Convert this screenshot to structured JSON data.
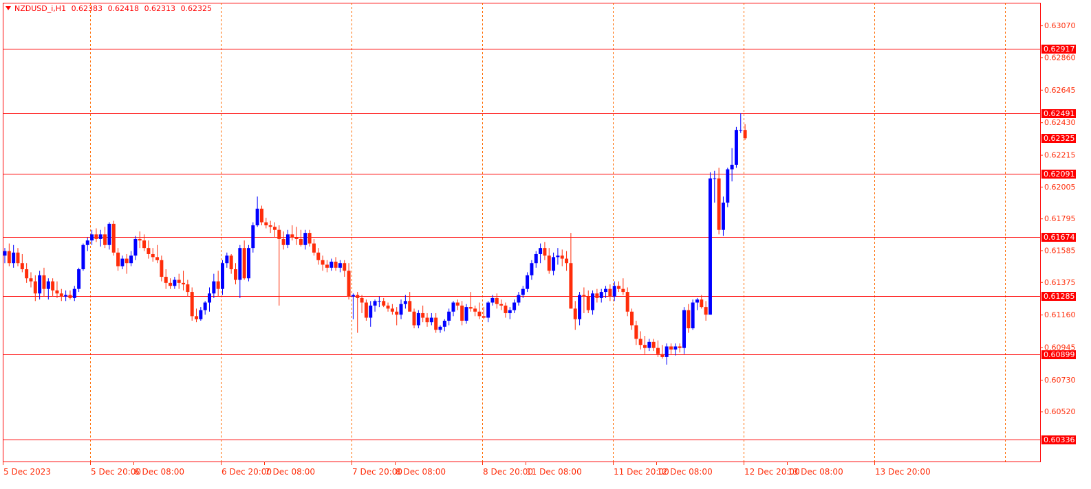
{
  "header": {
    "symbol": "NZDUSD_i,H1",
    "open": "0.62383",
    "high": "0.62418",
    "low": "0.62313",
    "close": "0.62325"
  },
  "colors": {
    "bull": "#0000ff",
    "bear": "#ff2d0a",
    "grid": "#ff6a00",
    "hline": "#ff0000",
    "axis_text": "#ff2d0a",
    "label_bg": "#ff0000"
  },
  "chart_data": {
    "type": "candlestick",
    "symbol": "NZDUSD_i",
    "timeframe": "H1",
    "ylim": [
      0.6019,
      0.6322
    ],
    "y_ticks": [
      "0.63070",
      "0.62860",
      "0.62645",
      "0.62430",
      "0.62215",
      "0.62005",
      "0.61795",
      "0.61585",
      "0.61375",
      "0.61160",
      "0.60945",
      "0.60730",
      "0.60520"
    ],
    "x_ticks": [
      "5 Dec 2023",
      "5 Dec 20:00",
      "6 Dec 08:00",
      "6 Dec 20:00",
      "7 Dec 08:00",
      "7 Dec 20:00",
      "8 Dec 08:00",
      "8 Dec 20:00",
      "11 Dec 08:00",
      "11 Dec 20:00",
      "12 Dec 08:00",
      "12 Dec 20:00",
      "13 Dec 08:00",
      "13 Dec 20:00"
    ],
    "horizontal_lines": [
      "0.62917",
      "0.62491",
      "0.62091",
      "0.61674",
      "0.61285",
      "0.60899",
      "0.60336"
    ],
    "current_price": "0.62325",
    "candles": [
      [
        0.6155,
        0.616,
        0.615,
        0.6158
      ],
      [
        0.6158,
        0.6163,
        0.6148,
        0.615
      ],
      [
        0.615,
        0.6162,
        0.6147,
        0.6157
      ],
      [
        0.6157,
        0.616,
        0.6148,
        0.615
      ],
      [
        0.615,
        0.6156,
        0.6144,
        0.6146
      ],
      [
        0.6146,
        0.615,
        0.6137,
        0.614
      ],
      [
        0.614,
        0.6144,
        0.6134,
        0.6138
      ],
      [
        0.6138,
        0.6142,
        0.6125,
        0.613
      ],
      [
        0.613,
        0.6145,
        0.6126,
        0.6142
      ],
      [
        0.6142,
        0.6147,
        0.6128,
        0.6133
      ],
      [
        0.6133,
        0.614,
        0.6126,
        0.6138
      ],
      [
        0.6138,
        0.614,
        0.6128,
        0.6132
      ],
      [
        0.6132,
        0.6138,
        0.6127,
        0.613
      ],
      [
        0.613,
        0.6133,
        0.6125,
        0.6128
      ],
      [
        0.6128,
        0.6132,
        0.6125,
        0.6129
      ],
      [
        0.6129,
        0.6132,
        0.6126,
        0.6127
      ],
      [
        0.6127,
        0.6135,
        0.6125,
        0.6133
      ],
      [
        0.6133,
        0.6147,
        0.6131,
        0.6146
      ],
      [
        0.6146,
        0.6163,
        0.6145,
        0.6162
      ],
      [
        0.6162,
        0.6167,
        0.6158,
        0.6165
      ],
      [
        0.6165,
        0.6172,
        0.6162,
        0.6169
      ],
      [
        0.6169,
        0.6173,
        0.6164,
        0.6166
      ],
      [
        0.6166,
        0.6172,
        0.6161,
        0.6169
      ],
      [
        0.6169,
        0.6174,
        0.616,
        0.6162
      ],
      [
        0.6162,
        0.6177,
        0.6159,
        0.6176
      ],
      [
        0.6176,
        0.6178,
        0.6155,
        0.6157
      ],
      [
        0.6157,
        0.616,
        0.6145,
        0.6148
      ],
      [
        0.6148,
        0.6155,
        0.6146,
        0.6153
      ],
      [
        0.6153,
        0.6156,
        0.6143,
        0.615
      ],
      [
        0.615,
        0.6158,
        0.6148,
        0.6155
      ],
      [
        0.6155,
        0.6168,
        0.6152,
        0.6166
      ],
      [
        0.6166,
        0.6171,
        0.616,
        0.6165
      ],
      [
        0.6165,
        0.6169,
        0.6158,
        0.616
      ],
      [
        0.616,
        0.6165,
        0.6153,
        0.6156
      ],
      [
        0.6156,
        0.616,
        0.6151,
        0.6154
      ],
      [
        0.6154,
        0.6162,
        0.615,
        0.6152
      ],
      [
        0.6152,
        0.6155,
        0.6138,
        0.6141
      ],
      [
        0.6141,
        0.6146,
        0.6133,
        0.6137
      ],
      [
        0.6137,
        0.614,
        0.6133,
        0.6135
      ],
      [
        0.6135,
        0.6141,
        0.6133,
        0.6139
      ],
      [
        0.6139,
        0.6143,
        0.6133,
        0.6137
      ],
      [
        0.6137,
        0.6145,
        0.6132,
        0.6136
      ],
      [
        0.6136,
        0.6139,
        0.6128,
        0.6131
      ],
      [
        0.6131,
        0.6134,
        0.6112,
        0.6115
      ],
      [
        0.6115,
        0.612,
        0.6111,
        0.6113
      ],
      [
        0.6113,
        0.6121,
        0.6112,
        0.6119
      ],
      [
        0.6119,
        0.6125,
        0.6116,
        0.6124
      ],
      [
        0.6124,
        0.6134,
        0.6118,
        0.613
      ],
      [
        0.613,
        0.6143,
        0.6127,
        0.6138
      ],
      [
        0.6138,
        0.6145,
        0.6128,
        0.6133
      ],
      [
        0.6133,
        0.6152,
        0.6129,
        0.615
      ],
      [
        0.615,
        0.6157,
        0.6147,
        0.6155
      ],
      [
        0.6155,
        0.6156,
        0.6143,
        0.6146
      ],
      [
        0.6146,
        0.615,
        0.6136,
        0.6139
      ],
      [
        0.6139,
        0.6162,
        0.6127,
        0.616
      ],
      [
        0.616,
        0.6165,
        0.6139,
        0.614
      ],
      [
        0.614,
        0.6162,
        0.6138,
        0.616
      ],
      [
        0.616,
        0.6177,
        0.6157,
        0.6175
      ],
      [
        0.6175,
        0.6194,
        0.6174,
        0.6186
      ],
      [
        0.6186,
        0.6188,
        0.6175,
        0.6177
      ],
      [
        0.6177,
        0.618,
        0.6173,
        0.6175
      ],
      [
        0.6175,
        0.6178,
        0.617,
        0.6174
      ],
      [
        0.6174,
        0.6177,
        0.6167,
        0.6172
      ],
      [
        0.6172,
        0.6175,
        0.6122,
        0.6166
      ],
      [
        0.6166,
        0.6171,
        0.6159,
        0.6162
      ],
      [
        0.6162,
        0.6172,
        0.616,
        0.6169
      ],
      [
        0.6169,
        0.6175,
        0.6165,
        0.6167
      ],
      [
        0.6167,
        0.6174,
        0.6162,
        0.6166
      ],
      [
        0.6166,
        0.6172,
        0.6161,
        0.6162
      ],
      [
        0.6162,
        0.6172,
        0.6159,
        0.617
      ],
      [
        0.617,
        0.6172,
        0.6161,
        0.6163
      ],
      [
        0.6163,
        0.6166,
        0.6155,
        0.6157
      ],
      [
        0.6157,
        0.616,
        0.6149,
        0.6152
      ],
      [
        0.6152,
        0.6155,
        0.6145,
        0.6149
      ],
      [
        0.6149,
        0.6152,
        0.6144,
        0.6147
      ],
      [
        0.6147,
        0.6153,
        0.6145,
        0.6151
      ],
      [
        0.6151,
        0.6154,
        0.6145,
        0.6147
      ],
      [
        0.6147,
        0.6152,
        0.6144,
        0.615
      ],
      [
        0.615,
        0.6152,
        0.6141,
        0.6145
      ],
      [
        0.6145,
        0.615,
        0.6126,
        0.6128
      ],
      [
        0.6128,
        0.613,
        0.6113,
        0.6129
      ],
      [
        0.6129,
        0.6131,
        0.6104,
        0.6127
      ],
      [
        0.6127,
        0.6129,
        0.6117,
        0.6124
      ],
      [
        0.6124,
        0.6126,
        0.6112,
        0.6114
      ],
      [
        0.6114,
        0.6125,
        0.6108,
        0.6122
      ],
      [
        0.6122,
        0.6126,
        0.6118,
        0.6125
      ],
      [
        0.6125,
        0.6128,
        0.6121,
        0.6125
      ],
      [
        0.6125,
        0.6127,
        0.6121,
        0.6122
      ],
      [
        0.6122,
        0.6124,
        0.6118,
        0.612
      ],
      [
        0.612,
        0.6123,
        0.6116,
        0.6118
      ],
      [
        0.6118,
        0.6121,
        0.6109,
        0.6116
      ],
      [
        0.6116,
        0.6126,
        0.6113,
        0.6123
      ],
      [
        0.6123,
        0.6129,
        0.612,
        0.6125
      ],
      [
        0.6125,
        0.6131,
        0.612,
        0.6118
      ],
      [
        0.6118,
        0.612,
        0.6107,
        0.6109
      ],
      [
        0.6109,
        0.6119,
        0.6107,
        0.6117
      ],
      [
        0.6117,
        0.6122,
        0.6111,
        0.6114
      ],
      [
        0.6114,
        0.6117,
        0.6108,
        0.6111
      ],
      [
        0.6111,
        0.6117,
        0.6109,
        0.6114
      ],
      [
        0.6114,
        0.6117,
        0.6104,
        0.6106
      ],
      [
        0.6106,
        0.6109,
        0.6104,
        0.6108
      ],
      [
        0.6108,
        0.6113,
        0.6105,
        0.6112
      ],
      [
        0.6112,
        0.612,
        0.6109,
        0.6118
      ],
      [
        0.6118,
        0.6125,
        0.6115,
        0.6124
      ],
      [
        0.6124,
        0.6126,
        0.6119,
        0.6122
      ],
      [
        0.6122,
        0.6125,
        0.6109,
        0.6112
      ],
      [
        0.6112,
        0.6123,
        0.611,
        0.6121
      ],
      [
        0.6121,
        0.6131,
        0.6118,
        0.612
      ],
      [
        0.612,
        0.6122,
        0.6115,
        0.6118
      ],
      [
        0.6118,
        0.6124,
        0.6113,
        0.6115
      ],
      [
        0.6115,
        0.6121,
        0.6113,
        0.6114
      ],
      [
        0.6114,
        0.6125,
        0.6111,
        0.6124
      ],
      [
        0.6124,
        0.6129,
        0.6122,
        0.6127
      ],
      [
        0.6127,
        0.613,
        0.612,
        0.6123
      ],
      [
        0.6123,
        0.6126,
        0.6119,
        0.6122
      ],
      [
        0.6122,
        0.6124,
        0.6114,
        0.6117
      ],
      [
        0.6117,
        0.6121,
        0.6113,
        0.6119
      ],
      [
        0.6119,
        0.6126,
        0.6117,
        0.6124
      ],
      [
        0.6124,
        0.6131,
        0.6122,
        0.6129
      ],
      [
        0.6129,
        0.6135,
        0.6127,
        0.6133
      ],
      [
        0.6133,
        0.6144,
        0.6131,
        0.6142
      ],
      [
        0.6142,
        0.6152,
        0.6139,
        0.615
      ],
      [
        0.615,
        0.6158,
        0.6147,
        0.6156
      ],
      [
        0.6156,
        0.6163,
        0.615,
        0.616
      ],
      [
        0.616,
        0.6164,
        0.6152,
        0.6155
      ],
      [
        0.6155,
        0.616,
        0.6143,
        0.6145
      ],
      [
        0.6145,
        0.6157,
        0.6142,
        0.6154
      ],
      [
        0.6154,
        0.616,
        0.6149,
        0.6155
      ],
      [
        0.6155,
        0.6159,
        0.6148,
        0.6153
      ],
      [
        0.6153,
        0.6158,
        0.6145,
        0.615
      ],
      [
        0.615,
        0.617,
        0.612,
        0.612
      ],
      [
        0.612,
        0.6125,
        0.6106,
        0.6113
      ],
      [
        0.6113,
        0.6131,
        0.6109,
        0.6129
      ],
      [
        0.6129,
        0.6134,
        0.6117,
        0.6128
      ],
      [
        0.6128,
        0.6132,
        0.6117,
        0.6119
      ],
      [
        0.6119,
        0.6132,
        0.6116,
        0.613
      ],
      [
        0.613,
        0.6133,
        0.6124,
        0.6127
      ],
      [
        0.6127,
        0.6133,
        0.6124,
        0.6131
      ],
      [
        0.6131,
        0.6135,
        0.6127,
        0.6133
      ],
      [
        0.6133,
        0.6136,
        0.6125,
        0.6128
      ],
      [
        0.6128,
        0.6138,
        0.6125,
        0.6135
      ],
      [
        0.6135,
        0.6138,
        0.6131,
        0.6133
      ],
      [
        0.6133,
        0.614,
        0.6129,
        0.6131
      ],
      [
        0.6131,
        0.6134,
        0.6115,
        0.6118
      ],
      [
        0.6118,
        0.612,
        0.6106,
        0.6109
      ],
      [
        0.6109,
        0.6112,
        0.6096,
        0.61
      ],
      [
        0.61,
        0.6105,
        0.6093,
        0.6096
      ],
      [
        0.6096,
        0.6102,
        0.609,
        0.6094
      ],
      [
        0.6094,
        0.61,
        0.6092,
        0.6098
      ],
      [
        0.6098,
        0.61,
        0.6092,
        0.6094
      ],
      [
        0.6094,
        0.6099,
        0.6088,
        0.609
      ],
      [
        0.609,
        0.6096,
        0.6087,
        0.6088
      ],
      [
        0.6088,
        0.6097,
        0.6083,
        0.6095
      ],
      [
        0.6095,
        0.6097,
        0.609,
        0.6093
      ],
      [
        0.6093,
        0.6097,
        0.6089,
        0.6095
      ],
      [
        0.6095,
        0.6097,
        0.6091,
        0.6094
      ],
      [
        0.6094,
        0.6121,
        0.609,
        0.6119
      ],
      [
        0.6119,
        0.6123,
        0.6104,
        0.6107
      ],
      [
        0.6107,
        0.6126,
        0.6106,
        0.6124
      ],
      [
        0.6124,
        0.6127,
        0.6119,
        0.6126
      ],
      [
        0.6126,
        0.6129,
        0.612,
        0.6121
      ],
      [
        0.6121,
        0.6125,
        0.6112,
        0.6116
      ],
      [
        0.6116,
        0.621,
        0.6116,
        0.6206
      ],
      [
        0.6206,
        0.6211,
        0.619,
        0.6206
      ],
      [
        0.6206,
        0.6213,
        0.6169,
        0.6172
      ],
      [
        0.6172,
        0.6194,
        0.6168,
        0.619
      ],
      [
        0.619,
        0.6213,
        0.6187,
        0.6212
      ],
      [
        0.6212,
        0.6226,
        0.6204,
        0.6215
      ],
      [
        0.6215,
        0.624,
        0.6213,
        0.6238
      ],
      [
        0.6238,
        0.6249,
        0.6236,
        0.6238
      ],
      [
        0.6238,
        0.62418,
        0.62313,
        0.62325
      ]
    ]
  }
}
